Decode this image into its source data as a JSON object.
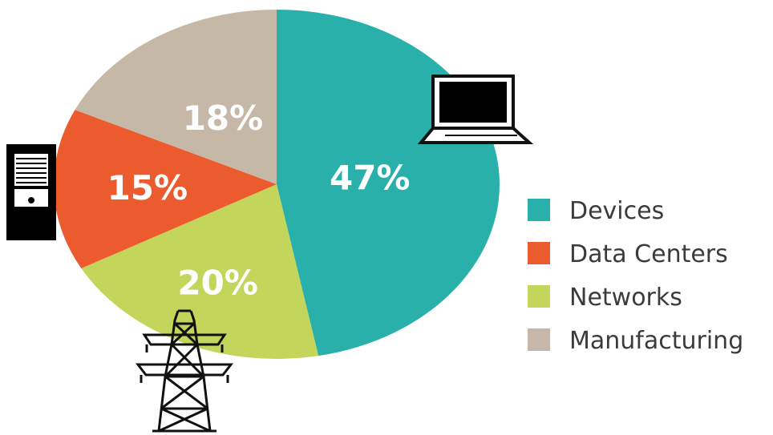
{
  "chart_data": {
    "type": "pie",
    "categories": [
      "Devices",
      "Data Centers",
      "Networks",
      "Manufacturing"
    ],
    "values": [
      47,
      15,
      20,
      18
    ],
    "value_labels": [
      "47%",
      "15%",
      "20%",
      "18%"
    ],
    "colors": [
      "#2ab0aa",
      "#ec5b2d",
      "#c3d55b",
      "#c6b8a6"
    ],
    "slice_order": [
      "Devices",
      "Networks",
      "Data Centers",
      "Manufacturing"
    ],
    "start_angle_deg": 0,
    "direction": "clockwise",
    "legend": {
      "placement": "right",
      "entries": [
        "Devices",
        "Data Centers",
        "Networks",
        "Manufacturing"
      ]
    },
    "icons": [
      {
        "name": "laptop-icon",
        "near": "Devices"
      },
      {
        "name": "server-icon",
        "near": "Data Centers"
      },
      {
        "name": "power-tower-icon",
        "near": "Networks"
      }
    ],
    "title": ""
  }
}
